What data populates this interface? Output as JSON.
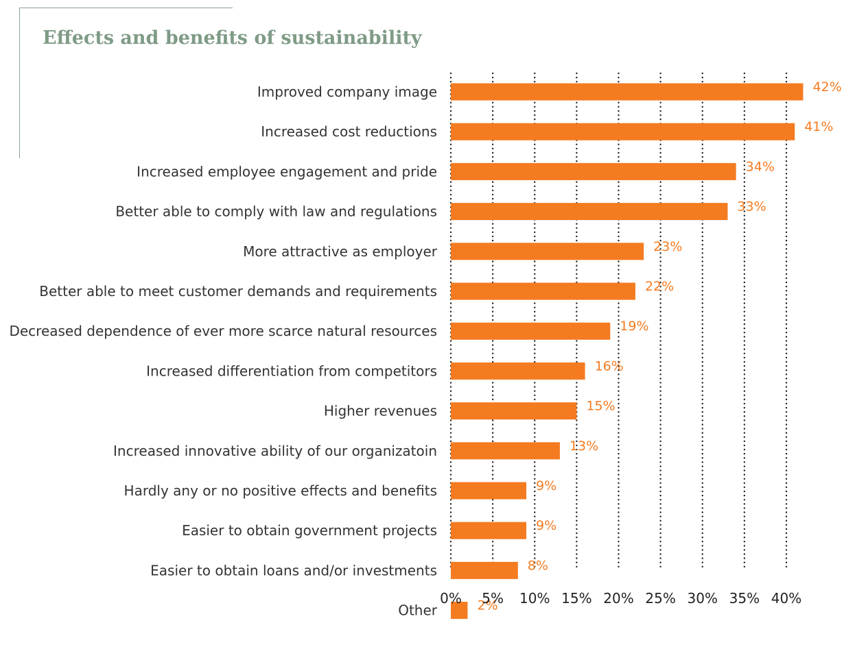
{
  "chart_data": {
    "type": "bar",
    "orientation": "horizontal",
    "title": "Effects and benefits of sustainability",
    "categories": [
      "Improved company image",
      "Increased cost reductions",
      "Increased employee engagement and pride",
      "Better able to comply with law and regulations",
      "More attractive as employer",
      "Better able to meet customer demands and requirements",
      "Decreased dependence of ever more scarce natural resources",
      "Increased differentiation from competitors",
      "Higher revenues",
      "Increased innovative ability of our organizatoin",
      "Hardly any or no positive effects and benefits",
      "Easier to obtain government projects",
      "Easier to obtain loans and/or investments",
      "Other"
    ],
    "values": [
      42,
      41,
      34,
      33,
      23,
      22,
      19,
      16,
      15,
      13,
      9,
      9,
      8,
      2
    ],
    "value_labels": [
      "42%",
      "41%",
      "34%",
      "33%",
      "23%",
      "22%",
      "19%",
      "16%",
      "15%",
      "13%",
      "9%",
      "9%",
      "8%",
      "2%"
    ],
    "xticks": [
      "0%",
      "5%",
      "10%",
      "15%",
      "20%",
      "25%",
      "30%",
      "35%",
      "40%"
    ],
    "xlim": [
      0,
      40
    ],
    "grid": true,
    "grid_style": "dotted-vertical",
    "xlabel": "",
    "ylabel": "",
    "bar_color": "#f47b20",
    "label_color": "#f47b20",
    "title_color": "#7f9b86"
  }
}
